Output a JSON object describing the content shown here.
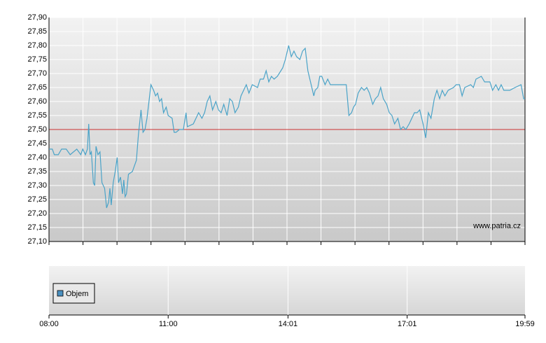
{
  "chart_data": {
    "type": "line",
    "xlim": [
      "08:00",
      "19:59"
    ],
    "xticks": [
      "08:00",
      "11:00",
      "14:01",
      "17:01",
      "19:59"
    ],
    "ylim": [
      27.1,
      27.9
    ],
    "yticks": [
      {
        "value": 27.1,
        "label": "27,10"
      },
      {
        "value": 27.15,
        "label": "27,15"
      },
      {
        "value": 27.2,
        "label": "27,20"
      },
      {
        "value": 27.25,
        "label": "27,25"
      },
      {
        "value": 27.3,
        "label": "27,30"
      },
      {
        "value": 27.35,
        "label": "27,35"
      },
      {
        "value": 27.4,
        "label": "27,40"
      },
      {
        "value": 27.45,
        "label": "27,45"
      },
      {
        "value": 27.5,
        "label": "27,50"
      },
      {
        "value": 27.55,
        "label": "27,55"
      },
      {
        "value": 27.6,
        "label": "27,60"
      },
      {
        "value": 27.65,
        "label": "27,65"
      },
      {
        "value": 27.7,
        "label": "27,70"
      },
      {
        "value": 27.75,
        "label": "27,75"
      },
      {
        "value": 27.8,
        "label": "27,80"
      },
      {
        "value": 27.85,
        "label": "27,85"
      },
      {
        "value": 27.9,
        "label": "27,90"
      }
    ],
    "grid": true,
    "reference_line": {
      "value": 27.5,
      "color": "#cc3333"
    },
    "watermark": "www.patria.cz",
    "volume": {
      "name": "Objem",
      "color": "#4a90c0"
    },
    "x": [
      "08:00",
      "08:05",
      "08:08",
      "08:14",
      "08:19",
      "08:26",
      "08:32",
      "08:42",
      "08:48",
      "08:51",
      "08:55",
      "08:58",
      "09:00",
      "09:02",
      "09:04",
      "09:07",
      "09:09",
      "09:11",
      "09:14",
      "09:17",
      "09:20",
      "09:24",
      "09:27",
      "09:30",
      "09:32",
      "09:34",
      "09:37",
      "09:40",
      "09:43",
      "09:45",
      "09:48",
      "09:51",
      "09:53",
      "09:55",
      "09:57",
      "10:00",
      "10:06",
      "10:12",
      "10:15",
      "10:19",
      "10:22",
      "10:25",
      "10:28",
      "10:31",
      "10:34",
      "10:38",
      "10:41",
      "10:44",
      "10:47",
      "10:50",
      "10:53",
      "10:57",
      "11:00",
      "11:06",
      "11:09",
      "11:12",
      "11:17",
      "11:23",
      "11:27",
      "11:29",
      "11:38",
      "11:42",
      "11:46",
      "11:51",
      "11:55",
      "11:59",
      "12:03",
      "12:07",
      "12:12",
      "12:16",
      "12:20",
      "12:24",
      "12:29",
      "12:33",
      "12:37",
      "12:41",
      "12:46",
      "12:50",
      "12:58",
      "13:02",
      "13:07",
      "13:15",
      "13:19",
      "13:24",
      "13:28",
      "13:32",
      "13:36",
      "13:40",
      "13:45",
      "13:53",
      "13:57",
      "14:02",
      "14:06",
      "14:10",
      "14:14",
      "14:19",
      "14:23",
      "14:27",
      "14:31",
      "14:35",
      "14:40",
      "14:42",
      "14:46",
      "14:49",
      "14:52",
      "14:57",
      "15:01",
      "15:05",
      "15:09",
      "15:29",
      "15:33",
      "15:37",
      "15:40",
      "15:43",
      "15:47",
      "15:52",
      "15:56",
      "16:00",
      "16:04",
      "16:09",
      "16:13",
      "16:17",
      "16:21",
      "16:25",
      "16:30",
      "16:34",
      "16:38",
      "16:42",
      "16:47",
      "16:51",
      "16:55",
      "16:59",
      "17:04",
      "17:08",
      "17:12",
      "17:16",
      "17:20",
      "17:25",
      "17:29",
      "17:33",
      "17:37",
      "17:42",
      "17:46",
      "17:50",
      "17:54",
      "17:58",
      "18:03",
      "18:11",
      "18:15",
      "18:20",
      "18:24",
      "18:28",
      "18:37",
      "18:41",
      "18:45",
      "18:53",
      "18:58",
      "19:06",
      "19:10",
      "19:15",
      "19:19",
      "19:23",
      "19:27",
      "19:36",
      "19:44",
      "19:53",
      "19:57",
      "19:59"
    ],
    "series": [
      {
        "color": "#4aa3c8",
        "values": [
          27.43,
          27.43,
          27.41,
          27.41,
          27.43,
          27.43,
          27.41,
          27.43,
          27.41,
          27.43,
          27.41,
          27.43,
          27.52,
          27.41,
          27.42,
          27.31,
          27.3,
          27.44,
          27.41,
          27.42,
          27.31,
          27.29,
          27.22,
          27.24,
          27.29,
          27.23,
          27.31,
          27.35,
          27.4,
          27.31,
          27.33,
          27.27,
          27.32,
          27.26,
          27.27,
          27.34,
          27.35,
          27.39,
          27.48,
          27.57,
          27.49,
          27.5,
          27.54,
          27.6,
          27.66,
          27.64,
          27.62,
          27.63,
          27.6,
          27.61,
          27.56,
          27.58,
          27.55,
          27.54,
          27.49,
          27.49,
          27.5,
          27.5,
          27.56,
          27.51,
          27.52,
          27.54,
          27.56,
          27.54,
          27.56,
          27.6,
          27.62,
          27.57,
          27.6,
          27.57,
          27.56,
          27.59,
          27.55,
          27.61,
          27.6,
          27.56,
          27.58,
          27.62,
          27.66,
          27.63,
          27.66,
          27.65,
          27.68,
          27.68,
          27.71,
          27.67,
          27.69,
          27.68,
          27.69,
          27.72,
          27.75,
          27.8,
          27.76,
          27.78,
          27.76,
          27.75,
          27.78,
          27.79,
          27.71,
          27.67,
          27.62,
          27.64,
          27.65,
          27.69,
          27.69,
          27.66,
          27.68,
          27.66,
          27.66,
          27.66,
          27.55,
          27.56,
          27.58,
          27.59,
          27.63,
          27.65,
          27.64,
          27.65,
          27.63,
          27.59,
          27.61,
          27.62,
          27.65,
          27.61,
          27.59,
          27.56,
          27.55,
          27.52,
          27.54,
          27.5,
          27.51,
          27.5,
          27.52,
          27.54,
          27.56,
          27.56,
          27.57,
          27.52,
          27.47,
          27.56,
          27.54,
          27.61,
          27.64,
          27.61,
          27.64,
          27.62,
          27.64,
          27.65,
          27.66,
          27.66,
          27.62,
          27.65,
          27.66,
          27.65,
          27.68,
          27.69,
          27.67,
          27.67,
          27.64,
          27.66,
          27.64,
          27.66,
          27.64,
          27.64,
          27.65,
          27.66,
          27.61,
          27.61
        ]
      }
    ]
  }
}
